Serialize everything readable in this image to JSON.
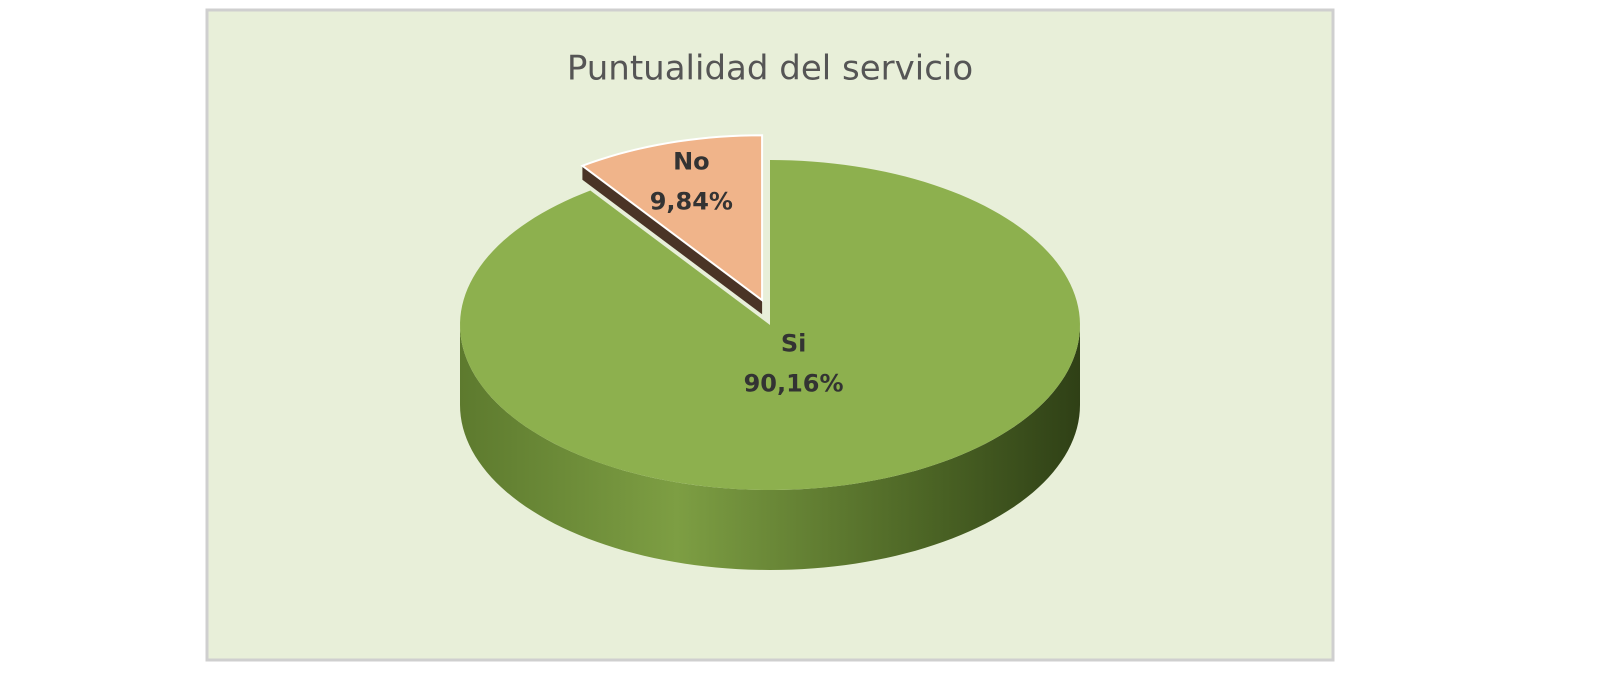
{
  "chart_data": {
    "type": "pie",
    "title": "Puntualidad del servicio",
    "categories": [
      "No",
      "Si"
    ],
    "values": [
      9.84,
      90.16
    ],
    "value_labels": [
      "9,84%",
      "90,16%"
    ],
    "colors": [
      "#f0b48a",
      "#8db04e"
    ]
  }
}
